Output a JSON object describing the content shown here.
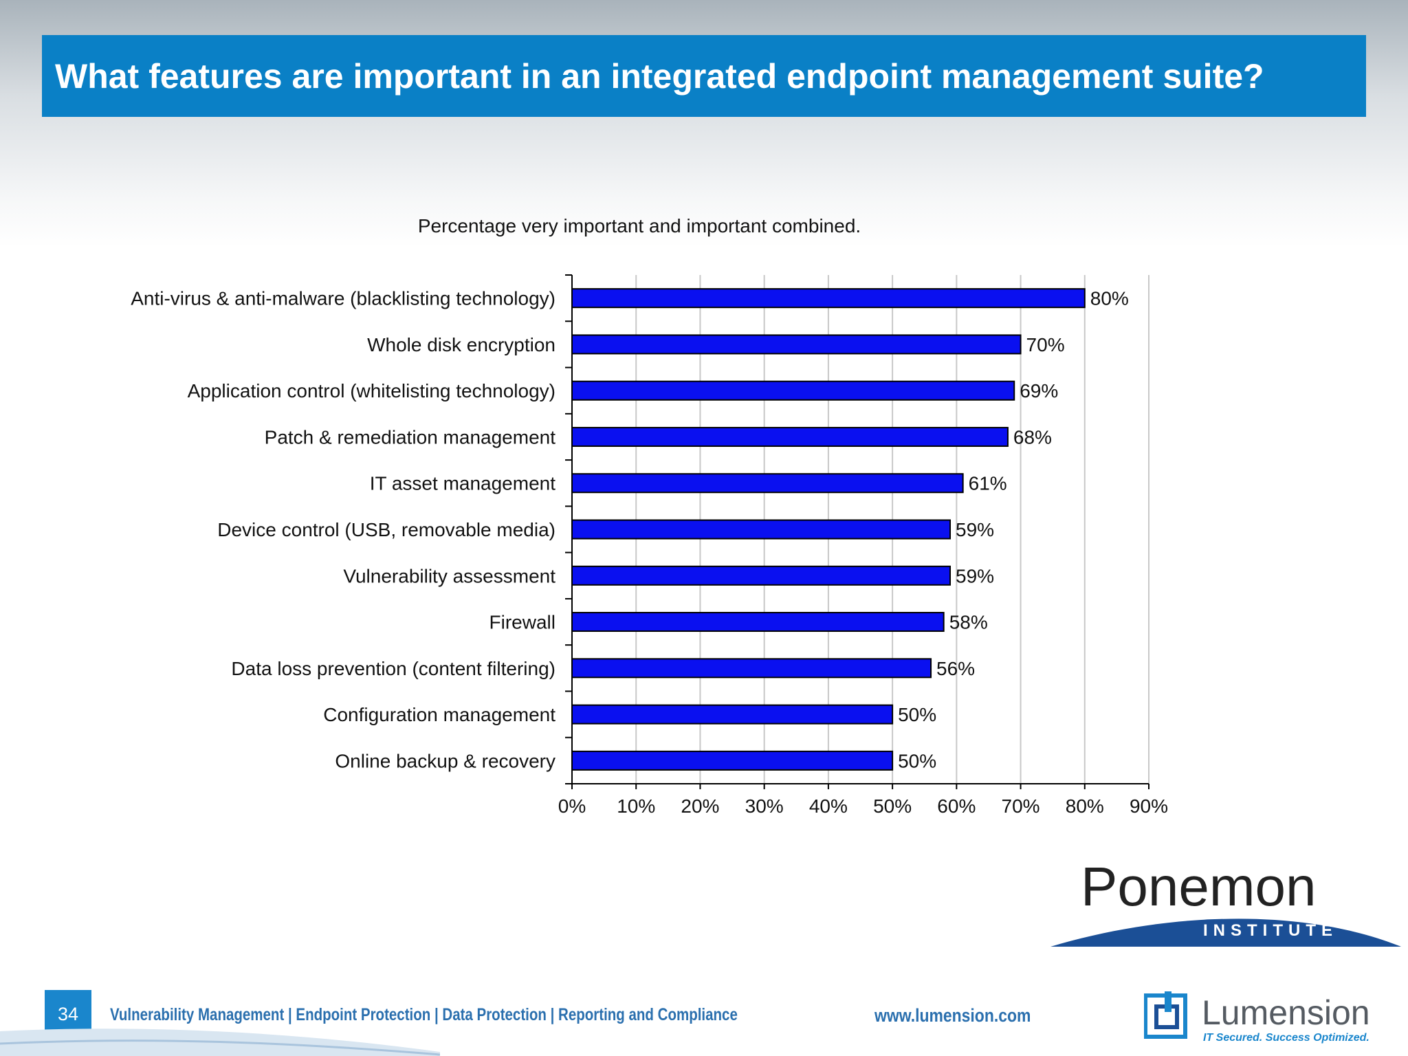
{
  "header": {
    "title": "What features are important in an integrated endpoint management suite?"
  },
  "chart_data": {
    "type": "bar",
    "orientation": "horizontal",
    "title": "Percentage very important and important combined.",
    "categories": [
      "Anti-virus & anti-malware (blacklisting technology)",
      "Whole disk encryption",
      "Application control (whitelisting technology)",
      "Patch & remediation management",
      "IT asset management",
      "Device control (USB, removable media)",
      "Vulnerability assessment",
      "Firewall",
      "Data loss prevention (content filtering)",
      "Configuration management",
      "Online backup & recovery"
    ],
    "values": [
      80,
      70,
      69,
      68,
      61,
      59,
      59,
      58,
      56,
      50,
      50
    ],
    "data_labels": [
      "80%",
      "70%",
      "69%",
      "68%",
      "61%",
      "59%",
      "59%",
      "58%",
      "56%",
      "50%",
      "50%"
    ],
    "xlim": [
      0,
      90
    ],
    "xticks": [
      "0%",
      "10%",
      "20%",
      "30%",
      "40%",
      "50%",
      "60%",
      "70%",
      "80%",
      "90%"
    ],
    "grid": true,
    "bar_color": "#0a10f0"
  },
  "footer": {
    "page_number": "34",
    "tagline": "Vulnerability Management | Endpoint Protection | Data Protection | Reporting and Compliance",
    "url": "www.lumension.com"
  },
  "logos": {
    "ponemon_name": "Ponemon",
    "ponemon_sub": "INSTITUTE",
    "lumension_name": "Lumension",
    "lumension_tagline": "IT Secured. Success Optimized."
  }
}
